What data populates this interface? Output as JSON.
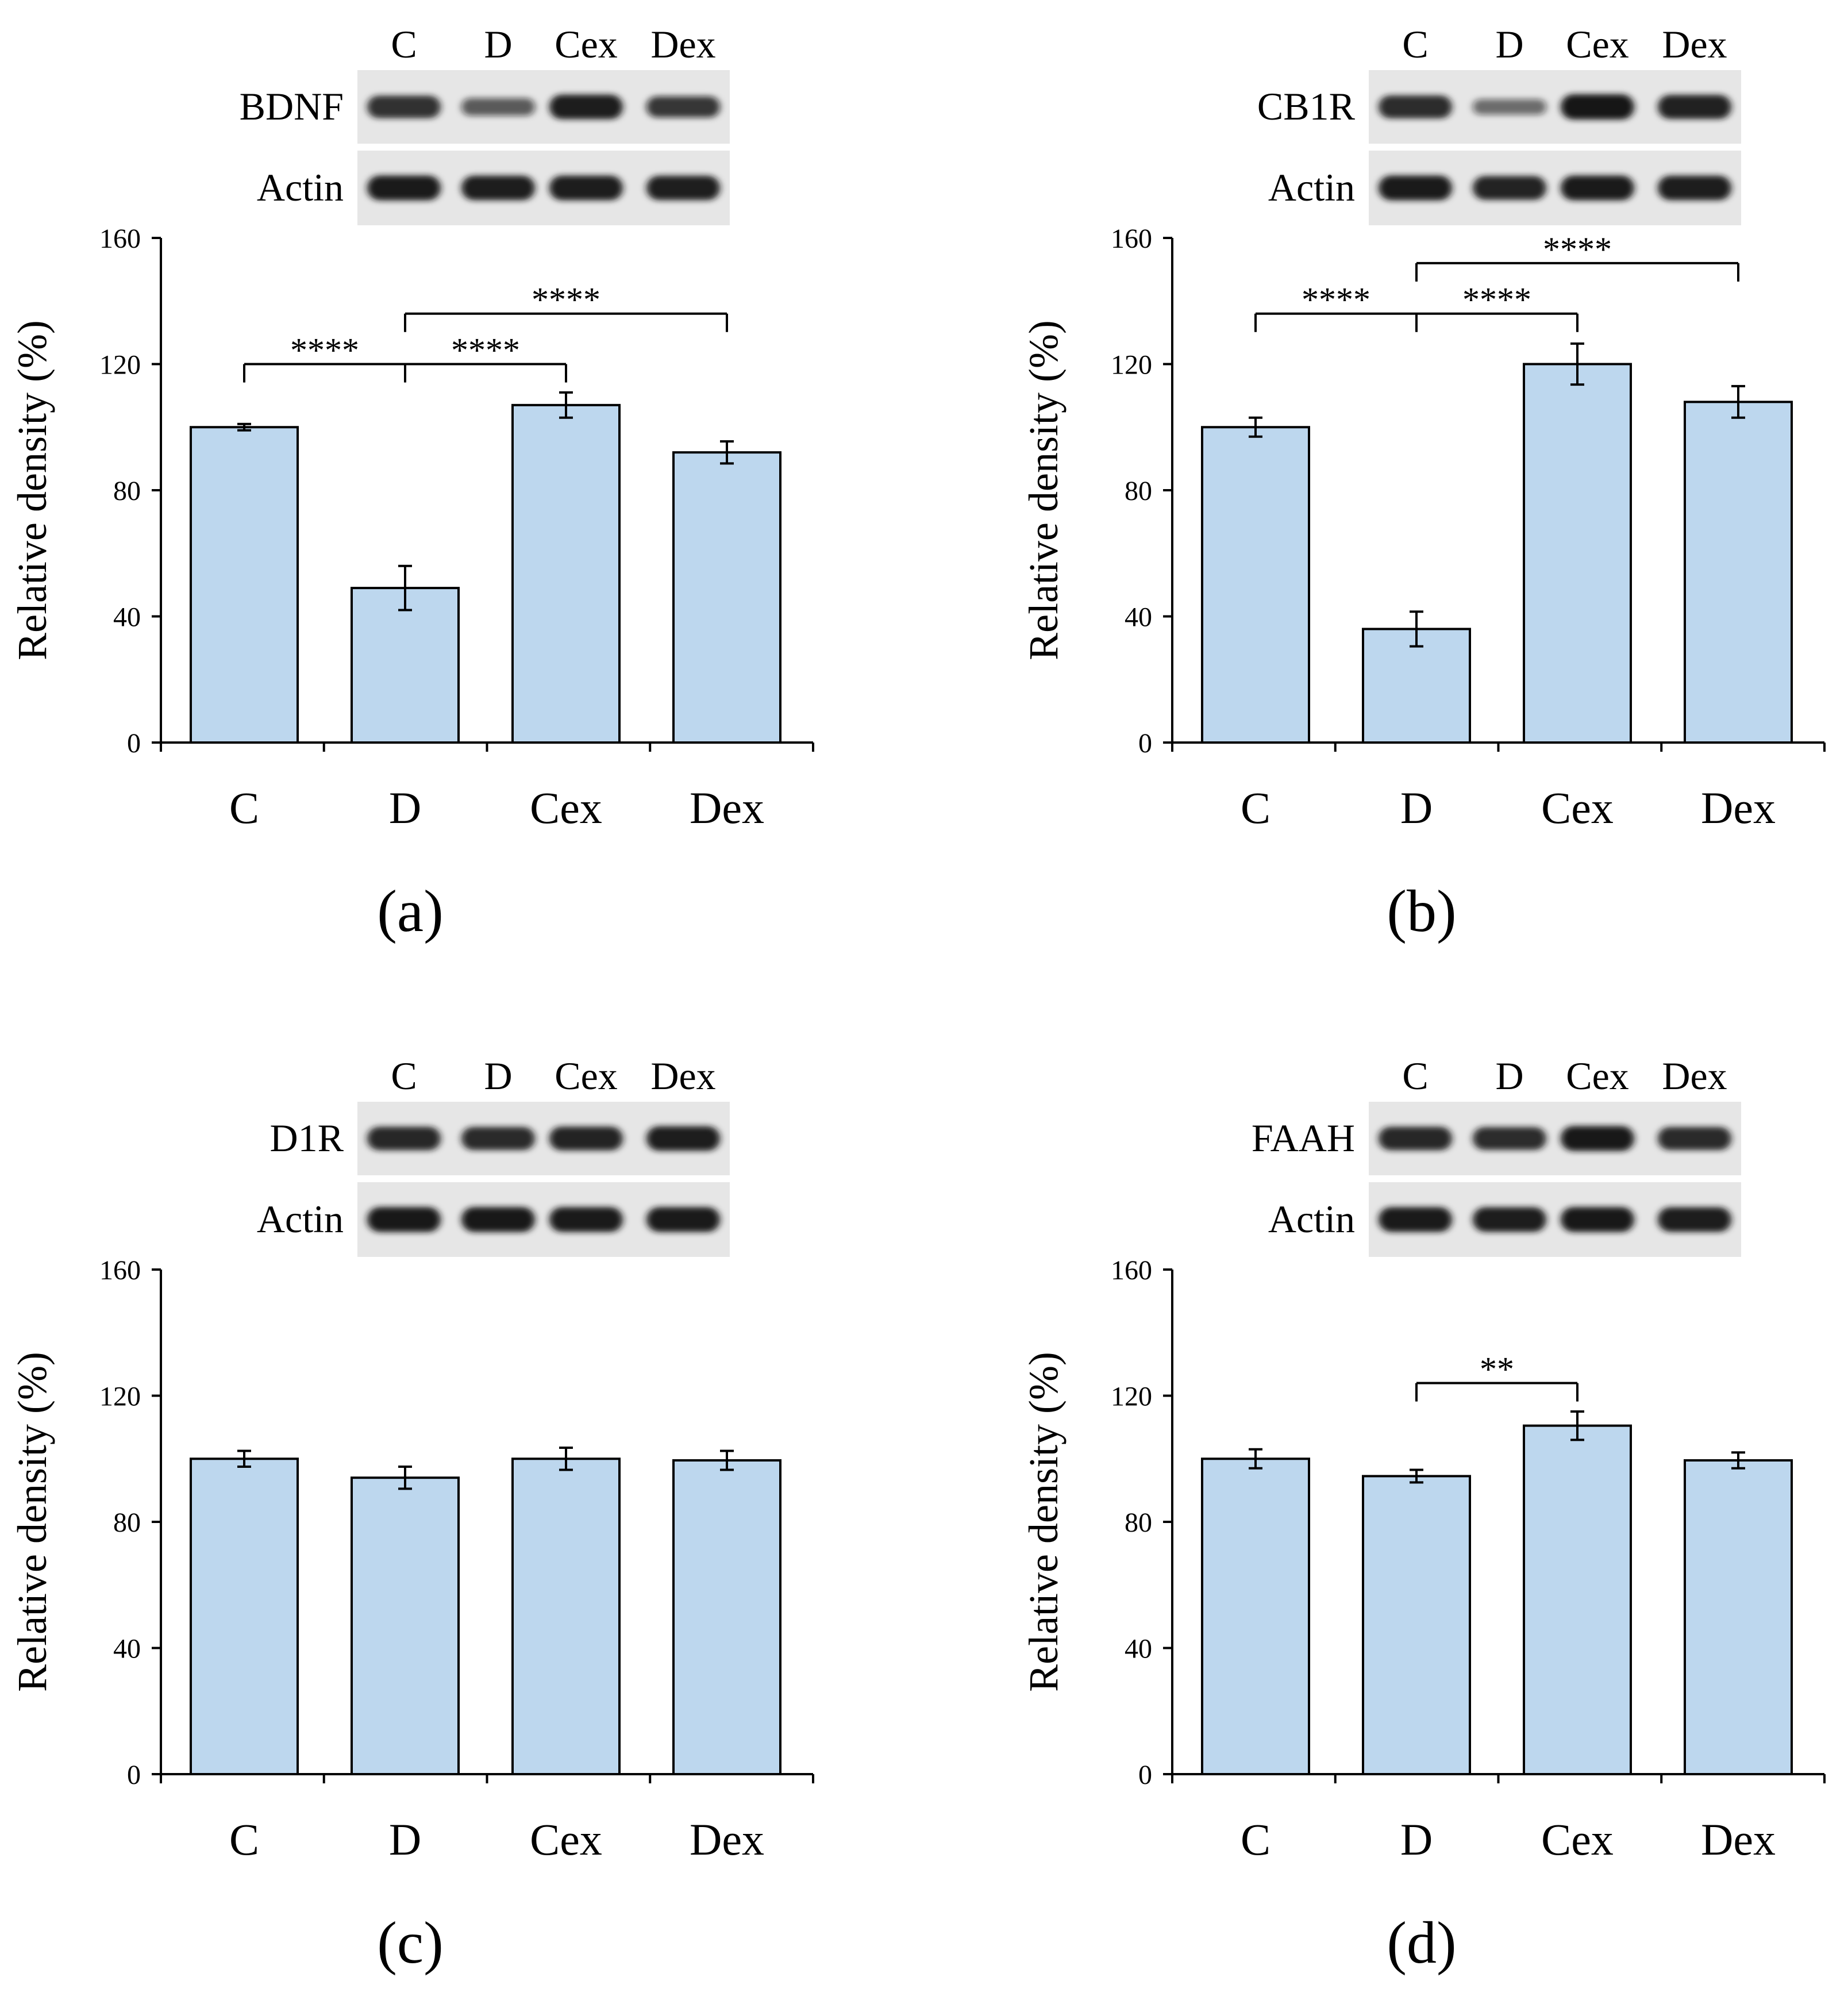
{
  "figure": {
    "colors": {
      "bar_fill": "#bdd7ee",
      "bar_stroke": "#000000",
      "axis": "#000000",
      "blot_background": "#e6e6e6",
      "band": "#141414"
    }
  },
  "chart_data": [
    {
      "panel_label": "(a)",
      "type": "bar",
      "protein": "BDNF",
      "loading_control": "Actin",
      "lane_labels": [
        "C",
        "D",
        "Cex",
        "Dex"
      ],
      "blot_band_intensity": {
        "target": [
          0.82,
          0.48,
          0.95,
          0.72
        ],
        "actin": [
          0.97,
          0.95,
          0.96,
          0.94
        ]
      },
      "categories": [
        "C",
        "D",
        "Cex",
        "Dex"
      ],
      "values": [
        100,
        49,
        107,
        92
      ],
      "errors": [
        1,
        7,
        4,
        3.5
      ],
      "ylabel": "Relative density (%)",
      "xlabel": "",
      "ylim": [
        0,
        160
      ],
      "yticks": [
        0,
        40,
        80,
        120,
        160
      ],
      "significance": [
        {
          "from": "D",
          "to": [
            "C",
            "Cex"
          ],
          "y": 120,
          "label": "****"
        },
        {
          "from": "D",
          "to": [
            "Dex"
          ],
          "y": 136,
          "label": "****"
        }
      ]
    },
    {
      "panel_label": "(b)",
      "type": "bar",
      "protein": "CB1R",
      "loading_control": "Actin",
      "lane_labels": [
        "C",
        "D",
        "Cex",
        "Dex"
      ],
      "blot_band_intensity": {
        "target": [
          0.85,
          0.35,
          1.0,
          0.92
        ],
        "actin": [
          0.97,
          0.9,
          0.97,
          0.95
        ]
      },
      "categories": [
        "C",
        "D",
        "Cex",
        "Dex"
      ],
      "values": [
        100,
        36,
        120,
        108
      ],
      "errors": [
        3,
        5.5,
        6.5,
        5
      ],
      "ylabel": "Relative density (%)",
      "xlabel": "",
      "ylim": [
        0,
        160
      ],
      "yticks": [
        0,
        40,
        80,
        120,
        160
      ],
      "significance": [
        {
          "from": "D",
          "to": [
            "C",
            "Cex"
          ],
          "y": 136,
          "label": "****"
        },
        {
          "from": "D",
          "to": [
            "Dex"
          ],
          "y": 152,
          "label": "****"
        }
      ]
    },
    {
      "panel_label": "(c)",
      "type": "bar",
      "protein": "D1R",
      "loading_control": "Actin",
      "lane_labels": [
        "C",
        "D",
        "Cex",
        "Dex"
      ],
      "blot_band_intensity": {
        "target": [
          0.88,
          0.86,
          0.9,
          0.95
        ],
        "actin": [
          0.98,
          0.98,
          0.97,
          0.97
        ]
      },
      "categories": [
        "C",
        "D",
        "Cex",
        "Dex"
      ],
      "values": [
        100,
        94,
        100,
        99.5
      ],
      "errors": [
        2.5,
        3.5,
        3.5,
        3
      ],
      "ylabel": "Relative density (%)",
      "xlabel": "",
      "ylim": [
        0,
        160
      ],
      "yticks": [
        0,
        40,
        80,
        120,
        160
      ],
      "significance": []
    },
    {
      "panel_label": "(d)",
      "type": "bar",
      "protein": "FAAH",
      "loading_control": "Actin",
      "lane_labels": [
        "C",
        "D",
        "Cex",
        "Dex"
      ],
      "blot_band_intensity": {
        "target": [
          0.88,
          0.84,
          0.98,
          0.86
        ],
        "actin": [
          0.97,
          0.96,
          0.98,
          0.96
        ]
      },
      "categories": [
        "C",
        "D",
        "Cex",
        "Dex"
      ],
      "values": [
        100,
        94.5,
        110.5,
        99.5
      ],
      "errors": [
        3,
        2,
        4.5,
        2.5
      ],
      "ylabel": "Relative density (%)",
      "xlabel": "",
      "ylim": [
        0,
        160
      ],
      "yticks": [
        0,
        40,
        80,
        120,
        160
      ],
      "significance": [
        {
          "from": "D",
          "to": [
            "Cex"
          ],
          "y": 124,
          "label": "**"
        }
      ]
    }
  ]
}
